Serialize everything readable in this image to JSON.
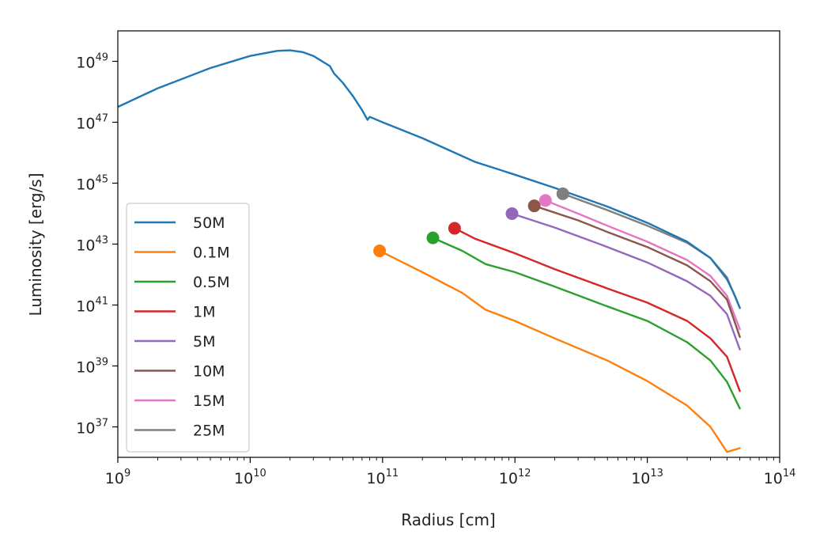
{
  "chart_data": {
    "type": "line",
    "title": "",
    "xlabel": "Radius [cm]",
    "ylabel": "Luminosity [erg/s]",
    "xscale": "log",
    "yscale": "log",
    "xlim": [
      1000000000.0,
      100000000000000.0
    ],
    "ylim": [
      1e+36,
      1e+50
    ],
    "x_ticks": [
      {
        "base": "10",
        "exp": "9",
        "value": 1000000000.0
      },
      {
        "base": "10",
        "exp": "10",
        "value": 10000000000.0
      },
      {
        "base": "10",
        "exp": "11",
        "value": 100000000000.0
      },
      {
        "base": "10",
        "exp": "12",
        "value": 1000000000000.0
      },
      {
        "base": "10",
        "exp": "13",
        "value": 10000000000000.0
      },
      {
        "base": "10",
        "exp": "14",
        "value": 100000000000000.0
      }
    ],
    "y_ticks": [
      {
        "base": "10",
        "exp": "37",
        "value": 1e+37
      },
      {
        "base": "10",
        "exp": "39",
        "value": 1e+39
      },
      {
        "base": "10",
        "exp": "41",
        "value": 1e+41
      },
      {
        "base": "10",
        "exp": "43",
        "value": 1e+43
      },
      {
        "base": "10",
        "exp": "45",
        "value": 1e+45
      },
      {
        "base": "10",
        "exp": "47",
        "value": 1e+47
      },
      {
        "base": "10",
        "exp": "49",
        "value": 1e+49
      }
    ],
    "grid": false,
    "legend_position": "lower-left",
    "series": [
      {
        "name": "50M",
        "color": "#1f77b4",
        "marker": false,
        "points": [
          [
            1000000000.0,
            3.2e+47
          ],
          [
            2000000000.0,
            1.3e+48
          ],
          [
            5000000000.0,
            6e+48
          ],
          [
            10000000000.0,
            1.5e+49
          ],
          [
            16000000000.0,
            2.2e+49
          ],
          [
            20000000000.0,
            2.3e+49
          ],
          [
            25000000000.0,
            2e+49
          ],
          [
            30000000000.0,
            1.5e+49
          ],
          [
            40000000000.0,
            7e+48
          ],
          [
            43000000000.0,
            4e+48
          ],
          [
            50000000000.0,
            2e+48
          ],
          [
            60000000000.0,
            7e+47
          ],
          [
            70000000000.0,
            2.5e+47
          ],
          [
            77000000000.0,
            1.2e+47
          ],
          [
            80000000000.0,
            1.5e+47
          ],
          [
            100000000000.0,
            1e+47
          ],
          [
            200000000000.0,
            3e+46
          ],
          [
            500000000000.0,
            5e+45
          ],
          [
            1000000000000.0,
            1.9e+45
          ],
          [
            2000000000000.0,
            7e+44
          ],
          [
            5000000000000.0,
            1.7e+44
          ],
          [
            10000000000000.0,
            5e+43
          ],
          [
            20000000000000.0,
            1.2e+43
          ],
          [
            30000000000000.0,
            3.5e+42
          ],
          [
            40000000000000.0,
            7e+41
          ],
          [
            46000000000000.0,
            2e+41
          ],
          [
            50000000000000.0,
            8e+40
          ]
        ]
      },
      {
        "name": "0.1M",
        "color": "#ff7f0e",
        "marker": true,
        "points": [
          [
            95000000000.0,
            6e+42
          ],
          [
            200000000000.0,
            1.2e+42
          ],
          [
            400000000000.0,
            2.5e+41
          ],
          [
            600000000000.0,
            7e+40
          ],
          [
            1000000000000.0,
            3e+40
          ],
          [
            2000000000000.0,
            8e+39
          ],
          [
            5000000000000.0,
            1.5e+39
          ],
          [
            10000000000000.0,
            3.2e+38
          ],
          [
            20000000000000.0,
            5e+37
          ],
          [
            30000000000000.0,
            1e+37
          ],
          [
            40000000000000.0,
            1.5e+36
          ],
          [
            50000000000000.0,
            2e+36
          ]
        ]
      },
      {
        "name": "0.5M",
        "color": "#2ca02c",
        "marker": true,
        "points": [
          [
            240000000000.0,
            1.6e+43
          ],
          [
            400000000000.0,
            6e+42
          ],
          [
            600000000000.0,
            2.2e+42
          ],
          [
            1000000000000.0,
            1.2e+42
          ],
          [
            2000000000000.0,
            4e+41
          ],
          [
            5000000000000.0,
            9e+40
          ],
          [
            10000000000000.0,
            3e+40
          ],
          [
            20000000000000.0,
            6e+39
          ],
          [
            30000000000000.0,
            1.5e+39
          ],
          [
            40000000000000.0,
            3e+38
          ],
          [
            50000000000000.0,
            4e+37
          ]
        ]
      },
      {
        "name": "1M",
        "color": "#d62728",
        "marker": true,
        "points": [
          [
            350000000000.0,
            3.3e+43
          ],
          [
            500000000000.0,
            1.5e+43
          ],
          [
            1000000000000.0,
            5e+42
          ],
          [
            2000000000000.0,
            1.5e+42
          ],
          [
            5000000000000.0,
            3.5e+41
          ],
          [
            10000000000000.0,
            1.2e+41
          ],
          [
            20000000000000.0,
            3e+40
          ],
          [
            30000000000000.0,
            8e+39
          ],
          [
            40000000000000.0,
            2e+39
          ],
          [
            50000000000000.0,
            1.5e+38
          ]
        ]
      },
      {
        "name": "5M",
        "color": "#9467bd",
        "marker": true,
        "points": [
          [
            950000000000.0,
            1e+44
          ],
          [
            2000000000000.0,
            3.5e+43
          ],
          [
            5000000000000.0,
            8e+42
          ],
          [
            10000000000000.0,
            2.5e+42
          ],
          [
            20000000000000.0,
            6e+41
          ],
          [
            30000000000000.0,
            2e+41
          ],
          [
            40000000000000.0,
            5e+40
          ],
          [
            50000000000000.0,
            3.5e+39
          ]
        ]
      },
      {
        "name": "10M",
        "color": "#8c564b",
        "marker": true,
        "points": [
          [
            1400000000000.0,
            1.8e+44
          ],
          [
            3000000000000.0,
            6e+43
          ],
          [
            5000000000000.0,
            2.5e+43
          ],
          [
            10000000000000.0,
            8e+42
          ],
          [
            20000000000000.0,
            2e+42
          ],
          [
            30000000000000.0,
            6e+41
          ],
          [
            40000000000000.0,
            1.5e+41
          ],
          [
            50000000000000.0,
            9e+39
          ]
        ]
      },
      {
        "name": "15M",
        "color": "#e377c2",
        "marker": true,
        "points": [
          [
            1700000000000.0,
            2.7e+44
          ],
          [
            3000000000000.0,
            1e+44
          ],
          [
            5000000000000.0,
            4e+43
          ],
          [
            10000000000000.0,
            1.2e+43
          ],
          [
            20000000000000.0,
            3e+42
          ],
          [
            30000000000000.0,
            9e+41
          ],
          [
            40000000000000.0,
            2e+41
          ],
          [
            50000000000000.0,
            1.6e+40
          ]
        ]
      },
      {
        "name": "25M",
        "color": "#7f7f7f",
        "marker": true,
        "points": [
          [
            2300000000000.0,
            4.5e+44
          ],
          [
            5000000000000.0,
            1.3e+44
          ],
          [
            10000000000000.0,
            4e+43
          ],
          [
            20000000000000.0,
            1.1e+43
          ],
          [
            30000000000000.0,
            3.5e+42
          ],
          [
            40000000000000.0,
            8e+41
          ],
          [
            50000000000000.0,
            8e+40
          ]
        ]
      }
    ]
  }
}
